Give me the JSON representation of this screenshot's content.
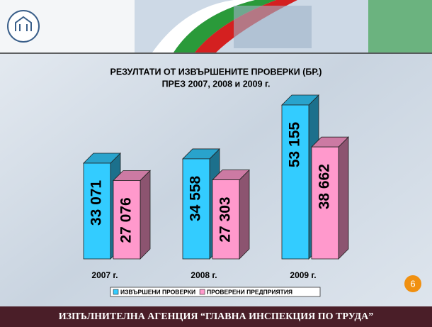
{
  "chart_data": {
    "type": "bar3d",
    "title": "РЕЗУЛТАТИ ОТ ИЗВЪРШЕНИТЕ ПРОВЕРКИ (БР.)",
    "subtitle": "ПРЕЗ 2007, 2008 и 2009 г.",
    "categories": [
      "2007 г.",
      "2008 г.",
      "2009 г."
    ],
    "series": [
      {
        "name": "ИЗВЪРШЕНИ ПРОВЕРКИ",
        "color": "#33ccff",
        "values": [
          33071,
          34558,
          53155
        ],
        "value_labels": [
          "33 071",
          "34 558",
          "53 155"
        ]
      },
      {
        "name": "ПРОВЕРЕНИ ПРЕДПРИЯТИЯ",
        "color": "#ff99cc",
        "values": [
          27076,
          27303,
          38662
        ],
        "value_labels": [
          "27 076",
          "27 303",
          "38 662"
        ]
      }
    ]
  },
  "slide": {
    "footer": "ИЗПЪЛНИТЕЛНА АГЕНЦИЯ “ГЛАВНА ИНСПЕКЦИЯ ПО ТРУДА”",
    "page_number": 6
  }
}
